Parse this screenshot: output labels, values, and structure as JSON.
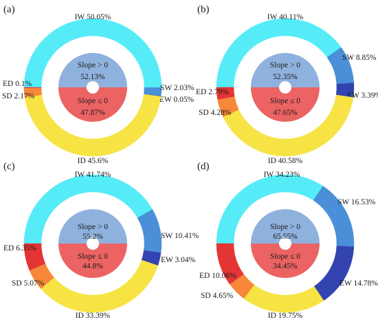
{
  "colors": {
    "IW": "#55ecf8",
    "SW": "#4a8fd8",
    "EW": "#3344b0",
    "ED": "#e33535",
    "SD": "#f7873a",
    "ID": "#f7e444",
    "slope_pos": "#8fb1dd",
    "slope_neg": "#ec6363"
  },
  "chart_data": [
    {
      "type": "pie",
      "panel": "(a)",
      "outer": [
        {
          "name": "IW",
          "value": 50.05,
          "label": "IW 50.05%"
        },
        {
          "name": "SW",
          "value": 2.03,
          "label": "SW 2.03%"
        },
        {
          "name": "EW",
          "value": 0.05,
          "label": "EW 0.05%"
        },
        {
          "name": "ID",
          "value": 45.6,
          "label": "ID 45.6%"
        },
        {
          "name": "SD",
          "value": 2.17,
          "label": "SD 2.17%"
        },
        {
          "name": "ED",
          "value": 0.1,
          "label": "ED 0.1%"
        }
      ],
      "inner": [
        {
          "name": "Slope > 0",
          "value": 52.13,
          "value_label": "52.13%"
        },
        {
          "name": "Slope ≤ 0",
          "value": 47.87,
          "value_label": "47.87%"
        }
      ]
    },
    {
      "type": "pie",
      "panel": "(b)",
      "outer": [
        {
          "name": "IW",
          "value": 40.11,
          "label": "IW 40.11%"
        },
        {
          "name": "SW",
          "value": 8.85,
          "label": "SW 8.85%"
        },
        {
          "name": "EW",
          "value": 3.39,
          "label": "EW 3.39%"
        },
        {
          "name": "ID",
          "value": 40.58,
          "label": "ID 40.58%"
        },
        {
          "name": "SD",
          "value": 4.28,
          "label": "SD 4.28%"
        },
        {
          "name": "ED",
          "value": 2.79,
          "label": "ED 2.79%"
        }
      ],
      "inner": [
        {
          "name": "Slope > 0",
          "value": 52.35,
          "value_label": "52.35%"
        },
        {
          "name": "Slope ≤ 0",
          "value": 47.65,
          "value_label": "47.65%"
        }
      ]
    },
    {
      "type": "pie",
      "panel": "(c)",
      "outer": [
        {
          "name": "IW",
          "value": 41.74,
          "label": "IW 41.74%"
        },
        {
          "name": "SW",
          "value": 10.41,
          "label": "SW 10.41%"
        },
        {
          "name": "EW",
          "value": 3.04,
          "label": "EW 3.04%"
        },
        {
          "name": "ID",
          "value": 33.39,
          "label": "ID 33.39%"
        },
        {
          "name": "SD",
          "value": 5.07,
          "label": "SD 5.07%"
        },
        {
          "name": "ED",
          "value": 6.35,
          "label": "ED 6.35%"
        }
      ],
      "inner": [
        {
          "name": "Slope > 0",
          "value": 55.2,
          "value_label": "55.2%"
        },
        {
          "name": "Slope ≤ 0",
          "value": 44.8,
          "value_label": "44.8%"
        }
      ]
    },
    {
      "type": "pie",
      "panel": "(d)",
      "outer": [
        {
          "name": "IW",
          "value": 34.23,
          "label": "IW 34.23%"
        },
        {
          "name": "SW",
          "value": 16.53,
          "label": "SW 16.53%"
        },
        {
          "name": "EW",
          "value": 14.78,
          "label": "EW 14.78%"
        },
        {
          "name": "ID",
          "value": 19.75,
          "label": "ID 19.75%"
        },
        {
          "name": "SD",
          "value": 4.65,
          "label": "SD 4.65%"
        },
        {
          "name": "ED",
          "value": 10.06,
          "label": "ED 10.06%"
        }
      ],
      "inner": [
        {
          "name": "Slope > 0",
          "value": 65.55,
          "value_label": "65.55%"
        },
        {
          "name": "Slope ≤ 0",
          "value": 34.45,
          "value_label": "34.45%"
        }
      ]
    }
  ]
}
